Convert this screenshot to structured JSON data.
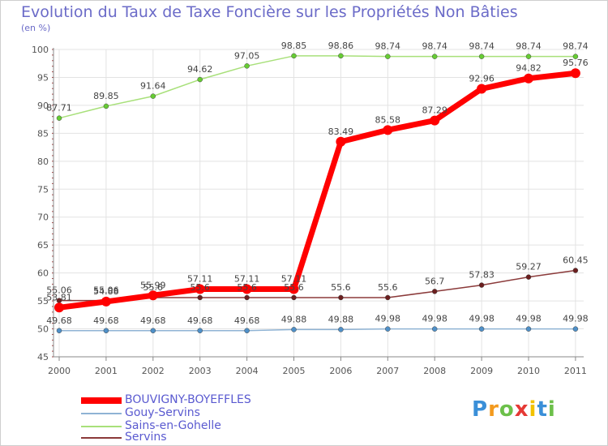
{
  "chart_data": {
    "type": "line",
    "title": "Evolution du Taux de Taxe Foncière sur les Propriétés Non Bâties",
    "ylabel": "(en %)",
    "xlabel": "",
    "ylim": [
      45,
      100
    ],
    "yticks": [
      45,
      50,
      55,
      60,
      65,
      70,
      75,
      80,
      85,
      90,
      95,
      100
    ],
    "grid": true,
    "categories": [
      "2000",
      "2001",
      "2002",
      "2003",
      "2004",
      "2005",
      "2006",
      "2007",
      "2008",
      "2009",
      "2010",
      "2011"
    ],
    "series": [
      {
        "name": "BOUVIGNY-BOYEFFLES",
        "color": "#ff0000",
        "values": [
          53.81,
          54.88,
          55.99,
          57.11,
          57.11,
          57.11,
          83.49,
          85.58,
          87.29,
          92.96,
          94.82,
          95.76
        ],
        "labels": [
          "53.81",
          "54.88",
          "55.99",
          "57.11",
          "57.11",
          "57.11",
          "83.49",
          "85.58",
          "87.29",
          "92.96",
          "94.82",
          "95.76"
        ]
      },
      {
        "name": "Gouy-Servins",
        "color": "#7ba7cc",
        "values": [
          49.68,
          49.68,
          49.68,
          49.68,
          49.68,
          49.88,
          49.88,
          49.98,
          49.98,
          49.98,
          49.98,
          49.98
        ],
        "labels": [
          "49.68",
          "49.68",
          "49.68",
          "49.68",
          "49.68",
          "49.88",
          "49.88",
          "49.98",
          "49.98",
          "49.98",
          "49.98",
          "49.98"
        ]
      },
      {
        "name": "Sains-en-Gohelle",
        "color": "#99dd66",
        "values": [
          87.71,
          89.85,
          91.64,
          94.62,
          97.05,
          98.85,
          98.86,
          98.74,
          98.74,
          98.74,
          98.74,
          98.74
        ],
        "labels": [
          "87.71",
          "89.85",
          "91.64",
          "94.62",
          "97.05",
          "98.85",
          "98.86",
          "98.74",
          "98.74",
          "98.74",
          "98.74",
          "98.74"
        ]
      },
      {
        "name": "Servins",
        "color": "#8b3a3a",
        "values": [
          55.06,
          55.06,
          55.6,
          55.6,
          55.6,
          55.6,
          55.6,
          55.6,
          56.7,
          57.83,
          59.27,
          60.45
        ],
        "labels": [
          "55.06",
          "55.06",
          "55.6",
          "55.6",
          "55.6",
          "55.6",
          "55.6",
          "55.6",
          "56.7",
          "57.83",
          "59.27",
          "60.45"
        ]
      }
    ]
  },
  "logo": {
    "letters": [
      "P",
      "r",
      "o",
      "x",
      "i",
      "t",
      "i"
    ],
    "colors": [
      "#3a8fd8",
      "#f39a1e",
      "#6cc04a",
      "#e53935",
      "#f2c200",
      "#3a8fd8",
      "#6cc04a"
    ]
  }
}
